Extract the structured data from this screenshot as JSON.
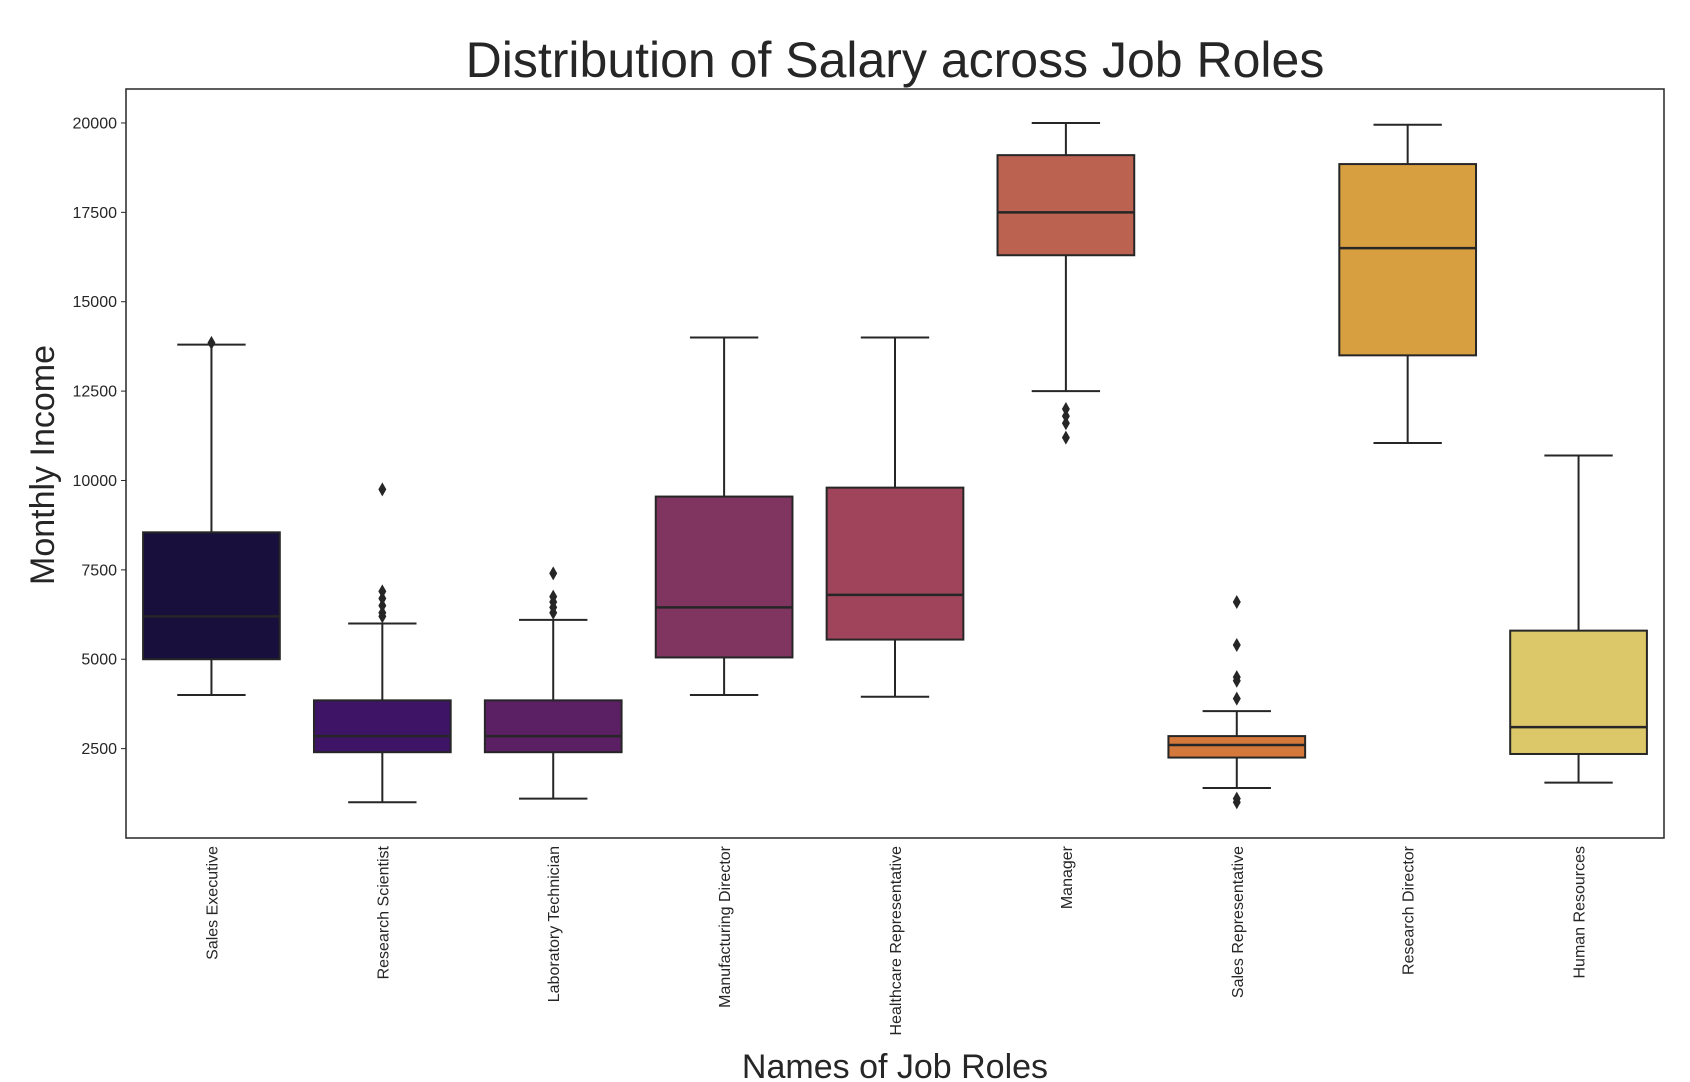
{
  "chart_data": {
    "type": "box",
    "title": "Distribution of Salary across Job Roles",
    "xlabel": "Names of Job Roles",
    "ylabel": "Monthly Income",
    "ylim": [
      0,
      20950
    ],
    "yticks": [
      2500,
      5000,
      7500,
      10000,
      12500,
      15000,
      17500,
      20000
    ],
    "grid": false,
    "categories": [
      "Sales Executive",
      "Research Scientist",
      "Laboratory Technician",
      "Manufacturing Director",
      "Healthcare Representative",
      "Manager",
      "Sales Representative",
      "Research Director",
      "Human Resources"
    ],
    "boxes": [
      {
        "whisker_low": 4000,
        "q1": 5000,
        "median": 6200,
        "q3": 8550,
        "whisker_high": 13800,
        "outliers": [
          13850
        ]
      },
      {
        "whisker_low": 1000,
        "q1": 2400,
        "median": 2850,
        "q3": 3850,
        "whisker_high": 6000,
        "outliers": [
          6200,
          6300,
          6500,
          6700,
          6900,
          9750
        ]
      },
      {
        "whisker_low": 1100,
        "q1": 2400,
        "median": 2850,
        "q3": 3850,
        "whisker_high": 6100,
        "outliers": [
          6300,
          6450,
          6600,
          6750,
          7400
        ]
      },
      {
        "whisker_low": 4000,
        "q1": 5050,
        "median": 6450,
        "q3": 9550,
        "whisker_high": 14000,
        "outliers": []
      },
      {
        "whisker_low": 3950,
        "q1": 5550,
        "median": 6800,
        "q3": 9800,
        "whisker_high": 14000,
        "outliers": []
      },
      {
        "whisker_low": 12500,
        "q1": 16300,
        "median": 17500,
        "q3": 19100,
        "whisker_high": 20000,
        "outliers": [
          11200,
          11600,
          11800,
          12000
        ]
      },
      {
        "whisker_low": 1400,
        "q1": 2250,
        "median": 2600,
        "q3": 2850,
        "whisker_high": 3550,
        "outliers": [
          1000,
          1100,
          3900,
          4400,
          4500,
          5400,
          6600
        ]
      },
      {
        "whisker_low": 11050,
        "q1": 13500,
        "median": 16500,
        "q3": 18850,
        "whisker_high": 19950,
        "outliers": []
      },
      {
        "whisker_low": 1550,
        "q1": 2350,
        "median": 3100,
        "q3": 5800,
        "whisker_high": 10700,
        "outliers": []
      }
    ],
    "colors": [
      "#180f3d",
      "#3d1466",
      "#5b2064",
      "#7f3560",
      "#a0445b",
      "#bb6250",
      "#d5783c",
      "#d89f40",
      "#dcc868"
    ]
  }
}
